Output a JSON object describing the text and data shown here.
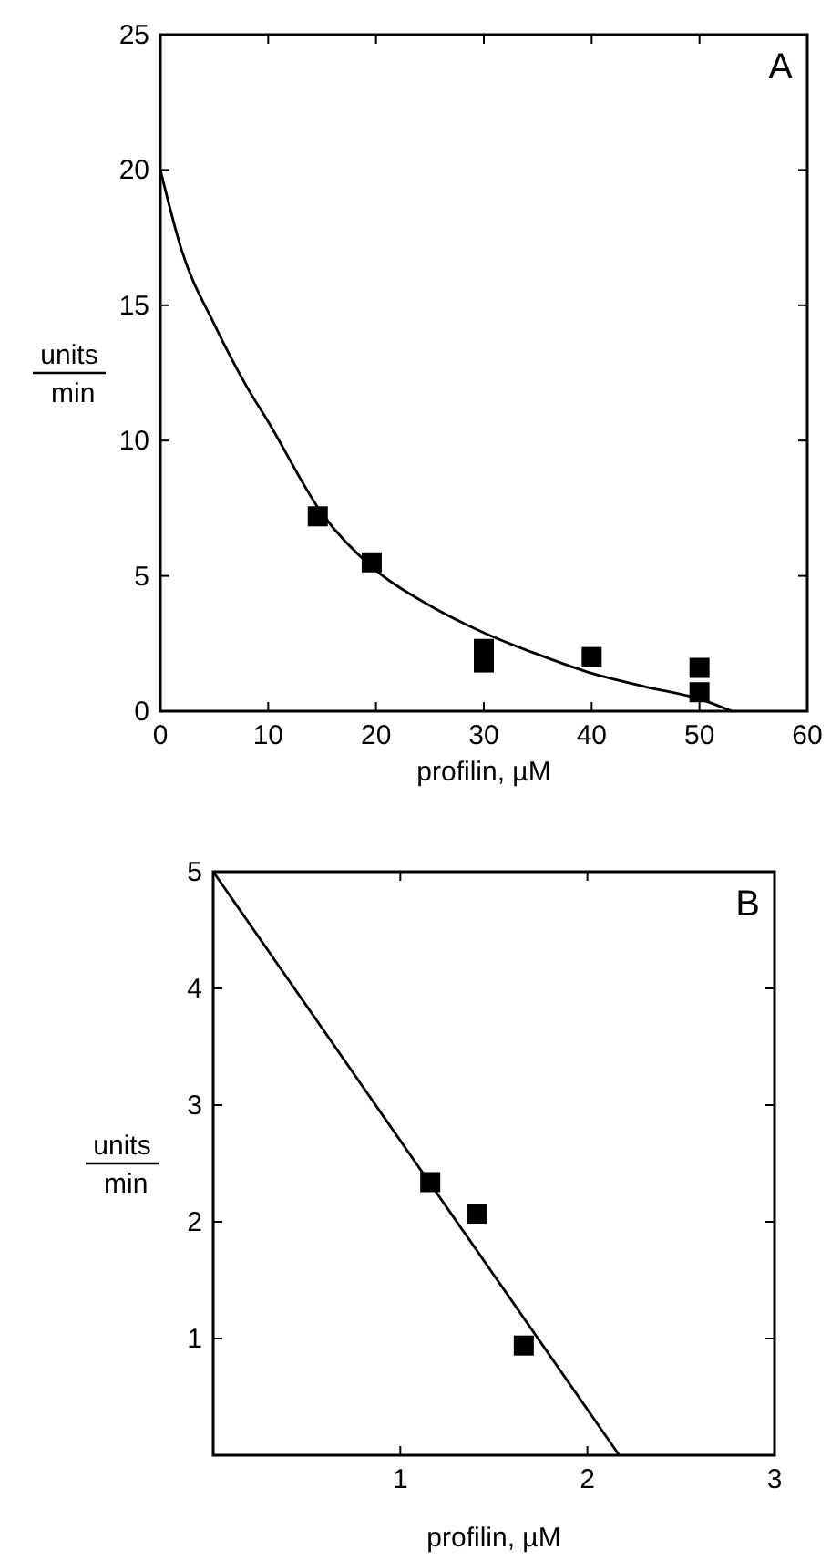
{
  "chart_data": [
    {
      "type": "scatter",
      "title": "A",
      "xlabel": "profilin, µM",
      "ylabel": "units min",
      "marker": "square",
      "grid": false,
      "xlim": [
        0,
        60
      ],
      "ylim": [
        0,
        25
      ],
      "xticks": [
        0,
        10,
        20,
        30,
        40,
        50,
        60
      ],
      "yticks": [
        0,
        5,
        10,
        15,
        20,
        25
      ],
      "series": [
        {
          "color": "#000000",
          "x": [
            14.6,
            19.6,
            30,
            30,
            40,
            50,
            50
          ],
          "values": [
            7.2,
            5.5,
            2.3,
            1.8,
            2.0,
            1.6,
            0.7
          ]
        },
        {
          "type": "line",
          "color": "#000000",
          "marker": "none",
          "x": [
            0,
            2,
            5,
            8,
            10,
            15,
            20,
            25,
            30,
            35,
            40,
            45,
            50,
            53
          ],
          "values": [
            20,
            17,
            14.3,
            12,
            10.7,
            7.3,
            5.2,
            3.9,
            2.9,
            2.1,
            1.4,
            0.9,
            0.45,
            0
          ]
        }
      ]
    },
    {
      "type": "scatter",
      "title": "B",
      "xlabel": "profilin, µM",
      "ylabel": "units min",
      "marker": "square",
      "grid": false,
      "xlim": [
        0,
        3
      ],
      "ylim": [
        0,
        5
      ],
      "xticks": [
        1,
        2,
        3
      ],
      "yticks": [
        1,
        2,
        3,
        4,
        5
      ],
      "series": [
        {
          "color": "#000000",
          "x": [
            1.16,
            1.41,
            1.66
          ],
          "values": [
            2.34,
            2.07,
            0.94
          ]
        },
        {
          "type": "line",
          "color": "#000000",
          "marker": "none",
          "x": [
            0,
            2.17
          ],
          "values": [
            5,
            0
          ]
        }
      ]
    }
  ]
}
